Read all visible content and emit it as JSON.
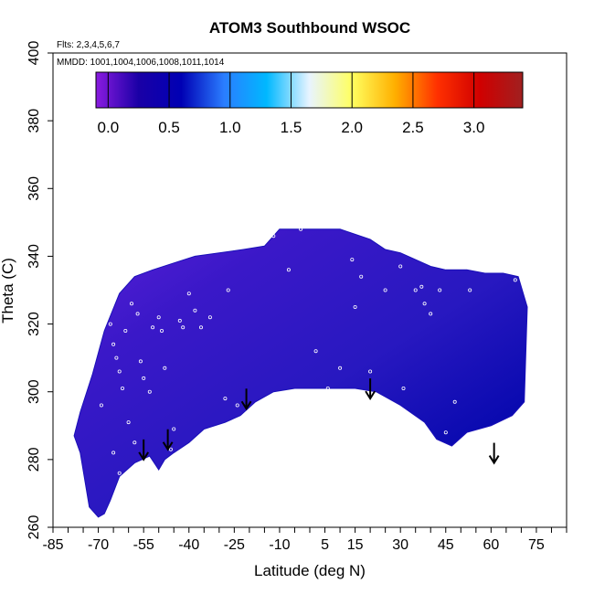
{
  "chart_data": {
    "type": "heatmap",
    "title": "ATOM3 Southbound WSOC",
    "flights_label": "Flts: 2,3,4,5,6,7",
    "dates_label": "MMDD: 1001,1004,1006,1008,1011,1014",
    "xlabel": "Latitude (deg N)",
    "ylabel": "Theta (C)",
    "xlim": [
      -85,
      85
    ],
    "ylim": [
      260,
      400
    ],
    "x_ticks": [
      -85,
      -70,
      -55,
      -40,
      -25,
      -10,
      5,
      15,
      30,
      45,
      60,
      75
    ],
    "y_ticks": [
      260,
      280,
      300,
      320,
      340,
      360,
      380,
      400
    ],
    "colorbar": {
      "range": [
        -0.1,
        3.4
      ],
      "ticks": [
        0.0,
        0.5,
        1.0,
        1.5,
        2.0,
        2.5,
        3.0
      ],
      "tick_labels": [
        "0.0",
        "0.5",
        "1.0",
        "1.5",
        "2.0",
        "2.5",
        "3.0"
      ],
      "colors": [
        "#8a1be0",
        "#1a00a6",
        "#0000b4",
        "#2a7dff",
        "#00b8ff",
        "#e8f4ff",
        "#ffff60",
        "#ffb000",
        "#ff3000",
        "#d00000",
        "#a02020"
      ]
    },
    "field_envelope": {
      "latitude": [
        -70,
        -73,
        -76,
        -78,
        -76,
        -72,
        -68,
        -63,
        -58,
        -52,
        -45,
        -38,
        -30,
        -22,
        -15,
        -10,
        0,
        10,
        20,
        25,
        30,
        35,
        40,
        45,
        52,
        58,
        64,
        69,
        72,
        71,
        67,
        60,
        52,
        47,
        42,
        38,
        30,
        22,
        15,
        5,
        -5,
        -12,
        -18,
        -23,
        -28,
        -35,
        -40,
        -45,
        -48,
        -50,
        -53,
        -58,
        -63,
        -66,
        -68
      ],
      "theta_upper": [],
      "theta": [
        263,
        266,
        282,
        287,
        294,
        305,
        318,
        329,
        334,
        336,
        338,
        340,
        341,
        342,
        343,
        348,
        348,
        348,
        345,
        342,
        341,
        339,
        337,
        336,
        336,
        335,
        335,
        334,
        325,
        297,
        293,
        290,
        288,
        284,
        286,
        291,
        296,
        300,
        301,
        301,
        301,
        300,
        297,
        293,
        291,
        289,
        285,
        282,
        280,
        277,
        281,
        279,
        275,
        268,
        264
      ]
    },
    "arrow_latitudes": [
      -55,
      -47,
      -21,
      20,
      61
    ],
    "arrow_thetas": [
      280,
      283,
      295,
      298,
      279
    ],
    "sample_points": [
      [
        -69,
        296
      ],
      [
        -67,
        324
      ],
      [
        -66,
        320
      ],
      [
        -65,
        314
      ],
      [
        -64,
        310
      ],
      [
        -63,
        306
      ],
      [
        -62,
        301
      ],
      [
        -60,
        291
      ],
      [
        -58,
        285
      ],
      [
        -57,
        278
      ],
      [
        -65,
        282
      ],
      [
        -63,
        276
      ],
      [
        -61,
        318
      ],
      [
        -59,
        326
      ],
      [
        -57,
        323
      ],
      [
        -56,
        309
      ],
      [
        -55,
        304
      ],
      [
        -53,
        300
      ],
      [
        -52,
        319
      ],
      [
        -50,
        322
      ],
      [
        -49,
        318
      ],
      [
        -48,
        307
      ],
      [
        -46,
        283
      ],
      [
        -45,
        289
      ],
      [
        -43,
        321
      ],
      [
        -42,
        319
      ],
      [
        -40,
        329
      ],
      [
        -38,
        324
      ],
      [
        -36,
        319
      ],
      [
        -33,
        322
      ],
      [
        -28,
        298
      ],
      [
        -27,
        330
      ],
      [
        -24,
        296
      ],
      [
        -20,
        344
      ],
      [
        -16,
        344
      ],
      [
        -12,
        346
      ],
      [
        -7,
        336
      ],
      [
        -3,
        348
      ],
      [
        2,
        312
      ],
      [
        6,
        301
      ],
      [
        10,
        307
      ],
      [
        14,
        339
      ],
      [
        15,
        325
      ],
      [
        17,
        334
      ],
      [
        20,
        306
      ],
      [
        25,
        330
      ],
      [
        28,
        344
      ],
      [
        30,
        337
      ],
      [
        31,
        301
      ],
      [
        35,
        330
      ],
      [
        37,
        331
      ],
      [
        38,
        326
      ],
      [
        40,
        323
      ],
      [
        43,
        330
      ],
      [
        45,
        288
      ],
      [
        48,
        297
      ],
      [
        53,
        330
      ],
      [
        68,
        333
      ]
    ]
  }
}
